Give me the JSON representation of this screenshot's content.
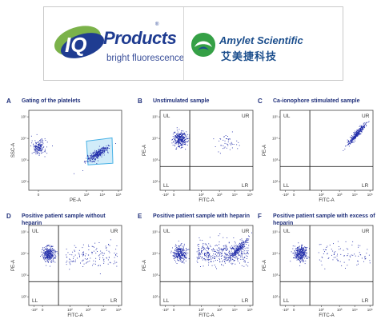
{
  "header": {
    "iq_logo_text": "IQ",
    "iq_products": "Products",
    "iq_registered": "®",
    "iq_tagline": "bright fluorescence",
    "amyjet_name": "Amylet Scientific",
    "amyjet_chinese": "艾美捷科技"
  },
  "colors": {
    "dots": "#1e2aa8",
    "gate": "#49b2e6",
    "title": "#1f2f7a",
    "iq_blue": "#1f3c91",
    "amy_green": "#35a046"
  },
  "chart_data": [
    {
      "id": "A",
      "letter": "A",
      "type": "scatter",
      "title": "Gating of the platelets",
      "xlabel": "PE-A",
      "ylabel": "SSC-A",
      "x_scale": "logicle",
      "y_scale": "log",
      "xticks": [
        "0",
        "10³",
        "10⁴",
        "10⁵"
      ],
      "yticks": [
        "10⁵",
        "10⁴",
        "10³",
        "10²"
      ],
      "quadrants": null,
      "gate": {
        "x_range": [
          "10³",
          "10⁴·⁵"
        ],
        "y_range": [
          "10³",
          "10⁴"
        ],
        "color": "#49b2e6"
      },
      "clusters": [
        {
          "x": 0,
          "y": 3.6,
          "spread": "tight",
          "n": 180
        },
        {
          "x": 3.7,
          "y": 3.3,
          "spread": "elongated",
          "n": 320
        }
      ]
    },
    {
      "id": "B",
      "letter": "B",
      "type": "scatter",
      "title": "Unstimulated sample",
      "xlabel": "FITC-A",
      "ylabel": "PE-A",
      "x_scale": "logicle",
      "y_scale": "log",
      "xticks": [
        "-10²",
        "0",
        "10²",
        "10³",
        "10⁴",
        "10⁵"
      ],
      "yticks": [
        "10⁵",
        "10⁴",
        "10³",
        "10²"
      ],
      "quadrants": [
        "UL",
        "UR",
        "LL",
        "LR"
      ],
      "clusters": [
        {
          "x": 0.4,
          "y": 4.0,
          "spread": "tight",
          "n": 320
        },
        {
          "x": 3.6,
          "y": 3.8,
          "spread": "sparse",
          "n": 45
        }
      ]
    },
    {
      "id": "C",
      "letter": "C",
      "type": "scatter",
      "title": "Ca-ionophore stimulated sample",
      "xlabel": "FITC-A",
      "ylabel": "PE-A",
      "x_scale": "logicle",
      "y_scale": "log",
      "xticks": [
        "-10²",
        "0",
        "10²",
        "10³",
        "10⁴",
        "10⁵"
      ],
      "yticks": [
        "10⁵",
        "10⁴",
        "10³",
        "10²"
      ],
      "quadrants": [
        "UL",
        "UR",
        "LL",
        "LR"
      ],
      "clusters": [
        {
          "x": 4.1,
          "y": 4.2,
          "spread": "diagonal",
          "n": 320
        }
      ]
    },
    {
      "id": "D",
      "letter": "D",
      "type": "scatter",
      "title": "Positive patient sample without heparin",
      "xlabel": "FITC-A",
      "ylabel": "PE-A",
      "x_scale": "logicle",
      "y_scale": "log",
      "xticks": [
        "-10²",
        "0",
        "10²",
        "10³",
        "10⁴",
        "10⁵"
      ],
      "yticks": [
        "10⁵",
        "10⁴",
        "10³",
        "10²"
      ],
      "quadrants": [
        "UL",
        "UR",
        "LL",
        "LR"
      ],
      "clusters": [
        {
          "x": 0.4,
          "y": 4.0,
          "spread": "tight",
          "n": 320
        },
        {
          "x": 3.2,
          "y": 3.9,
          "spread": "tail",
          "n": 140
        }
      ]
    },
    {
      "id": "E",
      "letter": "E",
      "type": "scatter",
      "title": "Positive patient sample with heparin",
      "xlabel": "FITC-A",
      "ylabel": "PE-A",
      "x_scale": "logicle",
      "y_scale": "log",
      "xticks": [
        "-10²",
        "0",
        "10²",
        "10³",
        "10⁴",
        "10⁵"
      ],
      "yticks": [
        "10⁵",
        "10⁴",
        "10³",
        "10²"
      ],
      "quadrants": [
        "UL",
        "UR",
        "LL",
        "LR"
      ],
      "clusters": [
        {
          "x": 0.4,
          "y": 4.0,
          "spread": "tight",
          "n": 280
        },
        {
          "x": 3.2,
          "y": 4.0,
          "spread": "tail",
          "n": 420
        },
        {
          "x": 4.2,
          "y": 4.2,
          "spread": "diagonal",
          "n": 220
        }
      ]
    },
    {
      "id": "F",
      "letter": "F",
      "type": "scatter",
      "title": "Positive patient sample with excess of heparin",
      "xlabel": "FITC-A",
      "ylabel": "PE-A",
      "x_scale": "logicle",
      "y_scale": "log",
      "xticks": [
        "-10²",
        "0",
        "10²",
        "10³",
        "10⁴",
        "10⁵"
      ],
      "yticks": [
        "10⁵",
        "10⁴",
        "10³",
        "10²"
      ],
      "quadrants": [
        "UL",
        "UR",
        "LL",
        "LR"
      ],
      "clusters": [
        {
          "x": 0.4,
          "y": 4.0,
          "spread": "tight",
          "n": 320
        },
        {
          "x": 3.3,
          "y": 3.9,
          "spread": "tail",
          "n": 90
        }
      ]
    }
  ]
}
